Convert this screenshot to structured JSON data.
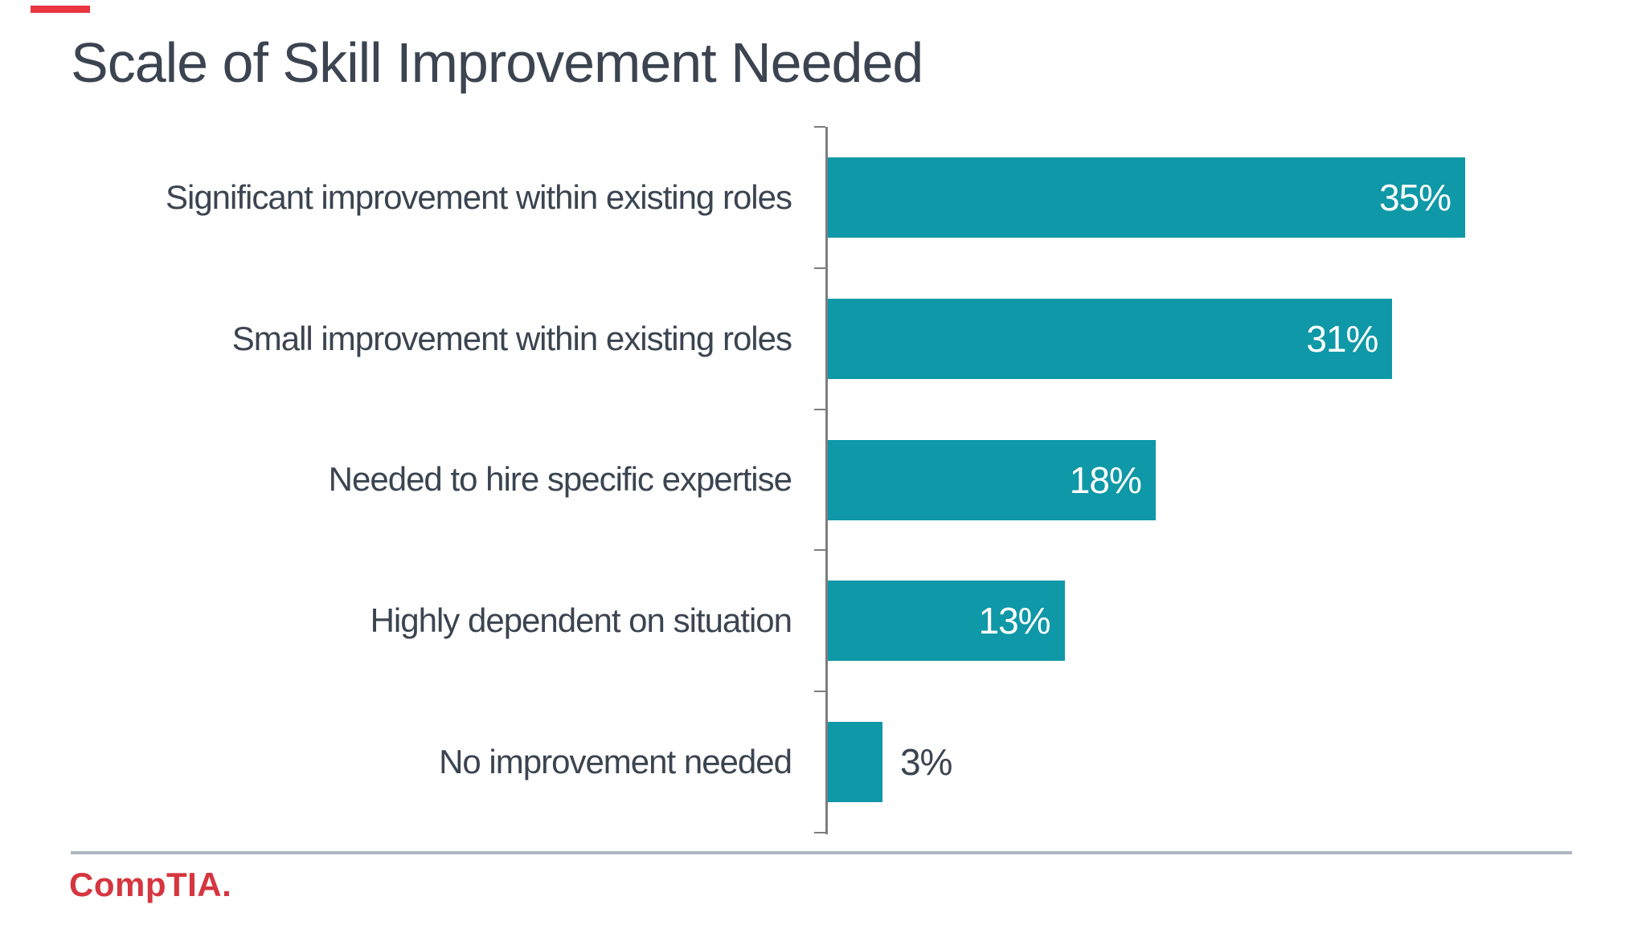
{
  "page": {
    "title": "Scale of Skill Improvement Needed"
  },
  "footer": {
    "logo_text": "CompTIA."
  },
  "colors": {
    "bar_teal": "#0f98a7",
    "text_dark": "#3b4450",
    "axis_gray": "#7d7d7d",
    "separator_gray": "#aeb7c0",
    "logo_red": "#d5363f",
    "value_label_white": "#ffffff",
    "accent_dash_red": "#e93540"
  },
  "chart_data": {
    "type": "bar",
    "orientation": "horizontal",
    "title": "Scale of Skill Improvement Needed",
    "xlabel": "",
    "ylabel": "",
    "categories": [
      "Significant improvement within existing roles",
      "Small improvement within existing roles",
      "Needed to hire specific expertise",
      "Highly dependent on situation",
      "No improvement needed"
    ],
    "values": [
      35,
      31,
      18,
      13,
      3
    ],
    "value_labels": [
      "35%",
      "31%",
      "18%",
      "13%",
      "3%"
    ],
    "xlim": [
      0,
      38
    ],
    "grid": false,
    "legend": false,
    "value_label_position": "inside-end, outside-end when bar too short"
  }
}
